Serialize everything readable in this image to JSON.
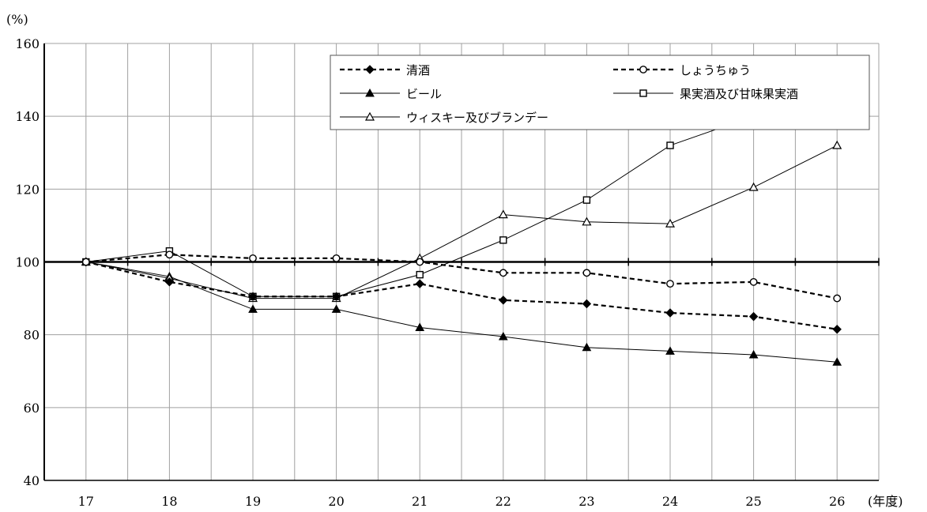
{
  "chart_data": {
    "type": "line",
    "y_unit_label": "(%)",
    "x_unit_label": "(年度)",
    "categories": [
      "17",
      "18",
      "19",
      "20",
      "21",
      "22",
      "23",
      "24",
      "25",
      "26"
    ],
    "ylim": [
      40,
      160
    ],
    "yticks": [
      40,
      60,
      80,
      100,
      120,
      140,
      160
    ],
    "baseline": 100,
    "grid": true,
    "legend_position": "top-right",
    "series": [
      {
        "name": "清酒",
        "marker": "diamond-filled",
        "line": "dashed-bold",
        "values": [
          100,
          94.5,
          90.5,
          90.5,
          94,
          89.5,
          88.5,
          86,
          85,
          81.5
        ]
      },
      {
        "name": "しょうちゅう",
        "marker": "circle-open",
        "line": "dashed-bold",
        "values": [
          100,
          102,
          101,
          101,
          100,
          97,
          97,
          94,
          94.5,
          90
        ]
      },
      {
        "name": "ビール",
        "marker": "triangle-filled",
        "line": "solid-thin",
        "values": [
          100,
          96,
          87,
          87,
          82,
          79.5,
          76.5,
          75.5,
          74.5,
          72.5
        ]
      },
      {
        "name": "果実酒及び甘味果実酒",
        "marker": "square-open",
        "line": "solid-thin",
        "values": [
          100,
          103,
          90.5,
          90.5,
          96.5,
          106,
          117,
          132,
          140,
          137.5
        ]
      },
      {
        "name": "ウィスキー及びブランデー",
        "marker": "triangle-open",
        "line": "solid-thin",
        "values": [
          100,
          95.5,
          90,
          90,
          101,
          113,
          111,
          110.5,
          120.5,
          132
        ]
      }
    ]
  }
}
